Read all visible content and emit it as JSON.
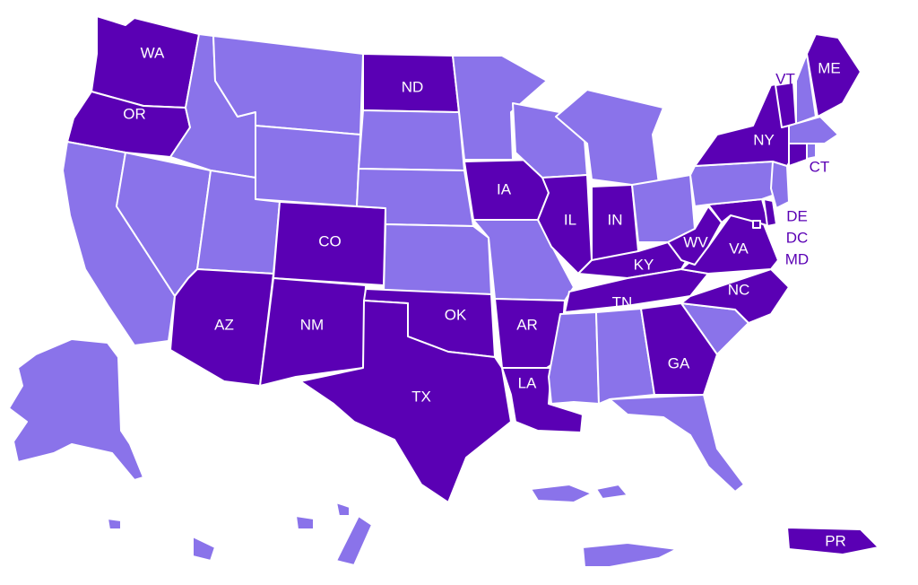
{
  "colors": {
    "highlight": "#5a00b4",
    "default": "#8a73ea",
    "label_on_fill": "#ffffff",
    "label_outside": "#5a00b4"
  },
  "highlighted_states": [
    "WA",
    "OR",
    "ND",
    "IA",
    "IL",
    "IN",
    "CO",
    "AZ",
    "NM",
    "OK",
    "TX",
    "AR",
    "LA",
    "TN",
    "KY",
    "GA",
    "NC",
    "VA",
    "WV",
    "MD",
    "DC",
    "DE",
    "NY",
    "VT",
    "ME",
    "CT",
    "PR"
  ],
  "labels": {
    "WA": "WA",
    "OR": "OR",
    "ND": "ND",
    "IA": "IA",
    "IL": "IL",
    "IN": "IN",
    "CO": "CO",
    "AZ": "AZ",
    "NM": "NM",
    "OK": "OK",
    "TX": "TX",
    "AR": "AR",
    "LA": "LA",
    "TN": "TN",
    "KY": "KY",
    "GA": "GA",
    "NC": "NC",
    "VA": "VA",
    "WV": "WV",
    "NY": "NY",
    "VT": "VT",
    "ME": "ME",
    "CT": "CT",
    "DE": "DE",
    "DC": "DC",
    "MD": "MD",
    "PR": "PR"
  }
}
